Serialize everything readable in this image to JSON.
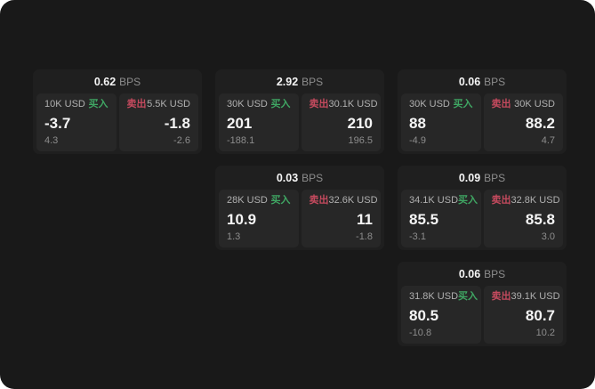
{
  "theme": {
    "app_bg": "#191919",
    "card_bg": "#1f1f1f",
    "panel_bg": "#272727",
    "text_primary": "#f5f5f5",
    "text_label": "#b0b0b0",
    "text_secondary": "#8d8d8d",
    "buy_color": "#3fa663",
    "sell_color": "#c44a5e"
  },
  "labels": {
    "bps_suffix": "BPS",
    "buy": "买入",
    "sell": "卖出"
  },
  "cards": [
    {
      "row": 1,
      "col": 1,
      "bps": "0.62",
      "buy": {
        "amount": "10K USD",
        "value": "-3.7",
        "delta": "4.3"
      },
      "sell": {
        "amount": "5.5K USD",
        "value": "-1.8",
        "delta": "-2.6"
      }
    },
    {
      "row": 1,
      "col": 2,
      "bps": "2.92",
      "buy": {
        "amount": "30K USD",
        "value": "201",
        "delta": "-188.1"
      },
      "sell": {
        "amount": "30.1K USD",
        "value": "210",
        "delta": "196.5"
      }
    },
    {
      "row": 1,
      "col": 3,
      "bps": "0.06",
      "buy": {
        "amount": "30K USD",
        "value": "88",
        "delta": "-4.9"
      },
      "sell": {
        "amount": "30K USD",
        "value": "88.2",
        "delta": "4.7"
      }
    },
    {
      "row": 2,
      "col": 2,
      "bps": "0.03",
      "buy": {
        "amount": "28K USD",
        "value": "10.9",
        "delta": "1.3"
      },
      "sell": {
        "amount": "32.6K USD",
        "value": "11",
        "delta": "-1.8"
      }
    },
    {
      "row": 2,
      "col": 3,
      "bps": "0.09",
      "buy": {
        "amount": "34.1K USD",
        "value": "85.5",
        "delta": "-3.1"
      },
      "sell": {
        "amount": "32.8K USD",
        "value": "85.8",
        "delta": "3.0"
      }
    },
    {
      "row": 3,
      "col": 3,
      "bps": "0.06",
      "buy": {
        "amount": "31.8K USD",
        "value": "80.5",
        "delta": "-10.8"
      },
      "sell": {
        "amount": "39.1K USD",
        "value": "80.7",
        "delta": "10.2"
      }
    }
  ]
}
